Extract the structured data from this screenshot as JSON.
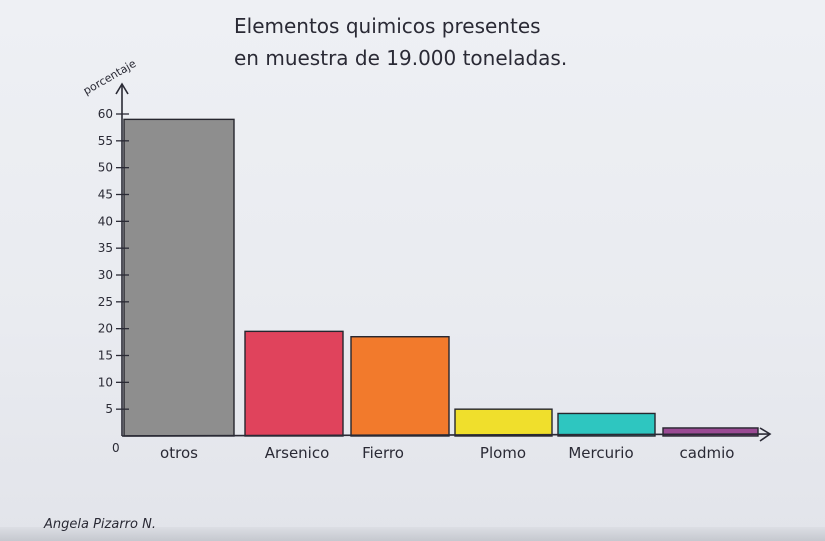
{
  "chart_data": {
    "type": "bar",
    "title_line1": "Elementos quimicos presentes",
    "title_line2": "en muestra de 19.000 toneladas.",
    "ylabel": "porcentaje",
    "categories": [
      "otros",
      "Arsenico",
      "Fierro",
      "Plomo",
      "Mercurio",
      "cadmio"
    ],
    "values": [
      59,
      19.5,
      18.5,
      5,
      4.2,
      1.5
    ],
    "colors": [
      "#8e8e8e",
      "#e0435c",
      "#f27a2c",
      "#f0df2c",
      "#2ec6c0",
      "#9a4a93"
    ],
    "ylim": [
      0,
      60
    ],
    "yticks": [
      "5",
      "10",
      "15",
      "20",
      "25",
      "30",
      "35",
      "40",
      "45",
      "50",
      "55",
      "60"
    ],
    "origin_label": "0",
    "grid": false,
    "legend": "none"
  },
  "signature": "Angela Pizarro N."
}
